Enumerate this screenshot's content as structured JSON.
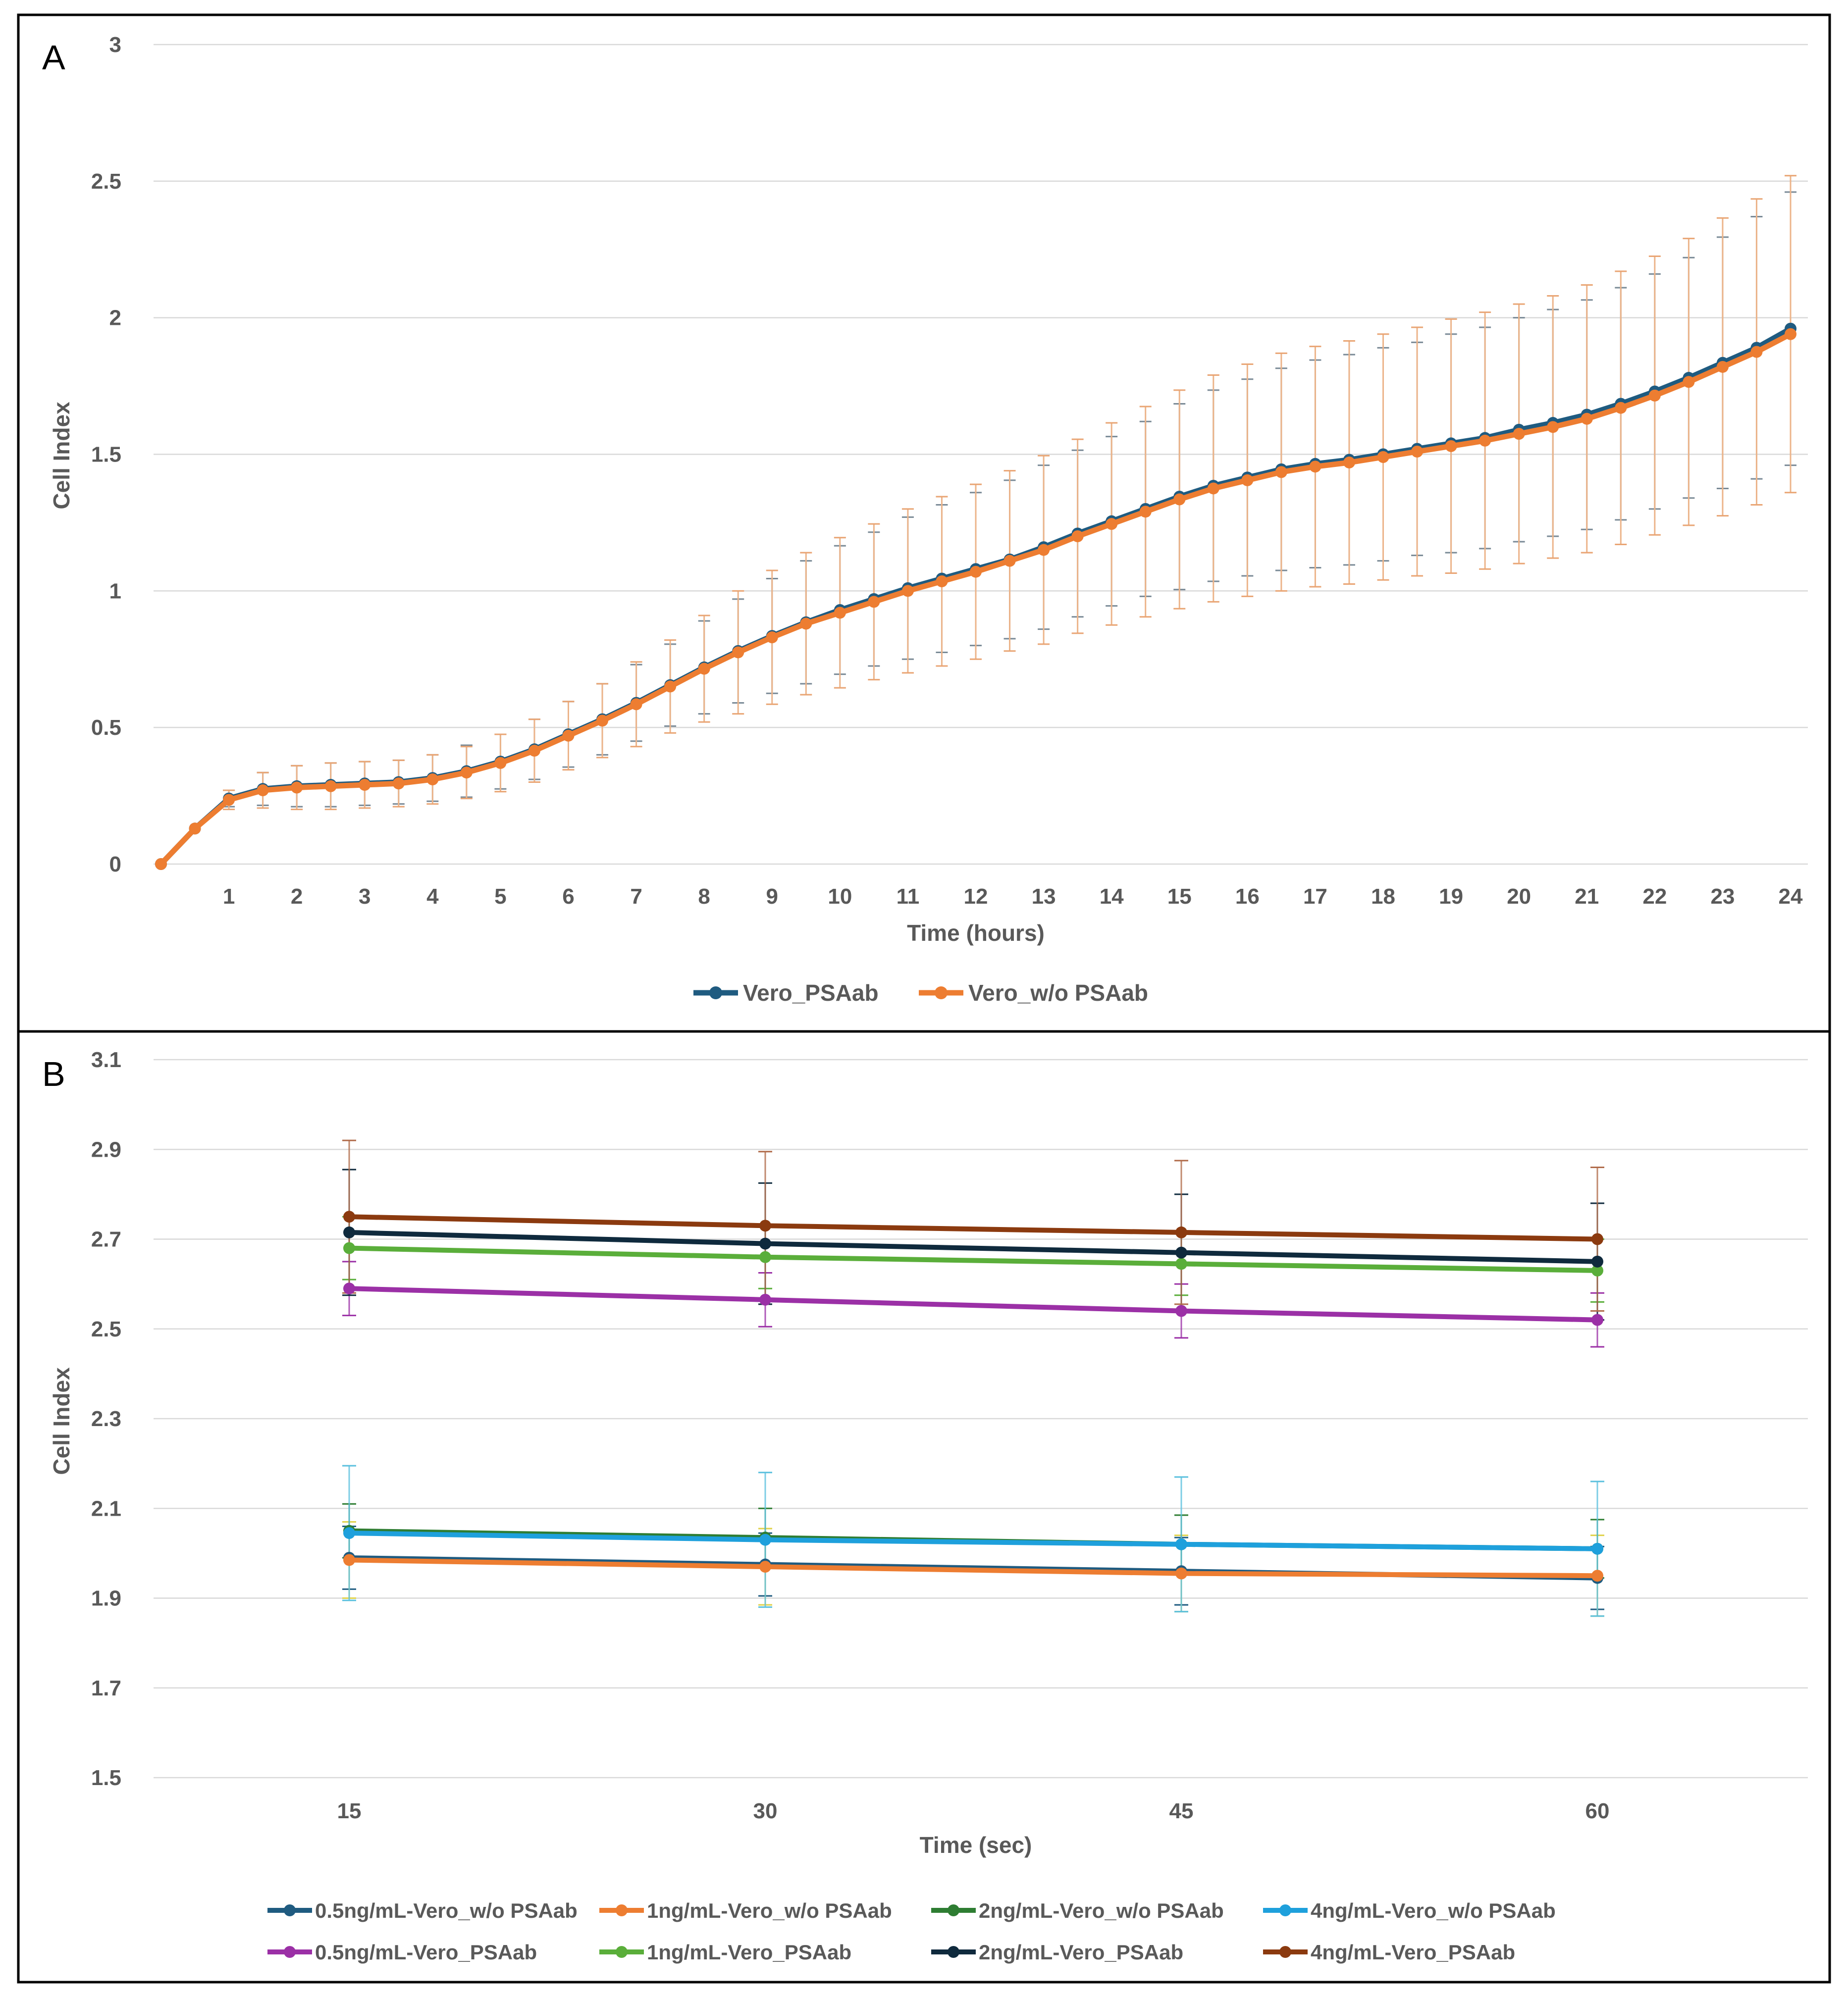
{
  "panels": {
    "a": {
      "letter": "A"
    },
    "b": {
      "letter": "B"
    }
  },
  "chart_data": [
    {
      "type": "line",
      "panel": "A",
      "title": "",
      "xlabel": "Time (hours)",
      "ylabel": "Cell Index",
      "xlim": [
        0,
        24
      ],
      "ylim": [
        0,
        3
      ],
      "x_tick_labels": [
        "1",
        "2",
        "3",
        "4",
        "5",
        "6",
        "7",
        "8",
        "9",
        "10",
        "11",
        "12",
        "13",
        "14",
        "15",
        "16",
        "17",
        "18",
        "19",
        "20",
        "21",
        "22",
        "23",
        "24"
      ],
      "y_tick_labels": [
        "0",
        "0.5",
        "1",
        "1.5",
        "2",
        "2.5",
        "3"
      ],
      "grid": true,
      "legend_position": "bottom",
      "x": [
        0,
        0.5,
        1,
        1.5,
        2,
        2.5,
        3,
        3.5,
        4,
        4.5,
        5,
        5.5,
        6,
        6.5,
        7,
        7.5,
        8,
        8.5,
        9,
        9.5,
        10,
        10.5,
        11,
        11.5,
        12,
        12.5,
        13,
        13.5,
        14,
        14.5,
        15,
        15.5,
        16,
        16.5,
        17,
        17.5,
        18,
        18.5,
        19,
        19.5,
        20,
        20.5,
        21,
        21.5,
        22,
        22.5,
        23,
        23.5,
        24
      ],
      "series": [
        {
          "name": "Vero_PSAab",
          "color": "#1f5b80",
          "values": [
            0,
            0.13,
            0.24,
            0.275,
            0.285,
            0.29,
            0.295,
            0.3,
            0.315,
            0.34,
            0.375,
            0.42,
            0.475,
            0.53,
            0.59,
            0.655,
            0.72,
            0.78,
            0.835,
            0.885,
            0.93,
            0.97,
            1.01,
            1.045,
            1.08,
            1.115,
            1.16,
            1.21,
            1.255,
            1.3,
            1.345,
            1.385,
            1.415,
            1.445,
            1.465,
            1.48,
            1.5,
            1.52,
            1.54,
            1.56,
            1.59,
            1.615,
            1.645,
            1.685,
            1.73,
            1.78,
            1.835,
            1.89,
            1.96
          ],
          "errors": [
            0,
            0,
            0.03,
            0.06,
            0.075,
            0.08,
            0.08,
            0.08,
            0.085,
            0.095,
            0.1,
            0.11,
            0.12,
            0.13,
            0.14,
            0.15,
            0.17,
            0.19,
            0.21,
            0.225,
            0.235,
            0.245,
            0.26,
            0.27,
            0.28,
            0.29,
            0.3,
            0.305,
            0.31,
            0.32,
            0.34,
            0.35,
            0.36,
            0.37,
            0.38,
            0.385,
            0.39,
            0.39,
            0.4,
            0.405,
            0.41,
            0.415,
            0.42,
            0.425,
            0.43,
            0.44,
            0.46,
            0.48,
            0.5
          ]
        },
        {
          "name": "Vero_w/o PSAab",
          "color": "#ed7d31",
          "values": [
            0,
            0.13,
            0.235,
            0.27,
            0.28,
            0.285,
            0.29,
            0.295,
            0.31,
            0.335,
            0.37,
            0.415,
            0.47,
            0.525,
            0.585,
            0.65,
            0.715,
            0.775,
            0.83,
            0.88,
            0.92,
            0.96,
            1.0,
            1.035,
            1.07,
            1.11,
            1.15,
            1.2,
            1.245,
            1.29,
            1.335,
            1.375,
            1.405,
            1.435,
            1.455,
            1.47,
            1.49,
            1.51,
            1.53,
            1.55,
            1.575,
            1.6,
            1.63,
            1.67,
            1.715,
            1.765,
            1.82,
            1.875,
            1.94
          ],
          "errors": [
            0,
            0,
            0.035,
            0.065,
            0.08,
            0.085,
            0.085,
            0.085,
            0.09,
            0.095,
            0.105,
            0.115,
            0.125,
            0.135,
            0.155,
            0.17,
            0.195,
            0.225,
            0.245,
            0.26,
            0.275,
            0.285,
            0.3,
            0.31,
            0.32,
            0.33,
            0.345,
            0.355,
            0.37,
            0.385,
            0.4,
            0.415,
            0.425,
            0.435,
            0.44,
            0.445,
            0.45,
            0.455,
            0.465,
            0.47,
            0.475,
            0.48,
            0.49,
            0.5,
            0.51,
            0.525,
            0.545,
            0.56,
            0.58
          ]
        }
      ]
    },
    {
      "type": "line",
      "panel": "B",
      "title": "",
      "xlabel": "Time (sec)",
      "ylabel": "Cell Index",
      "categories": [
        "15",
        "30",
        "45",
        "60"
      ],
      "ylim": [
        1.5,
        3.1
      ],
      "y_tick_labels": [
        "1.5",
        "1.7",
        "1.9",
        "2.1",
        "2.3",
        "2.5",
        "2.7",
        "2.9",
        "3.1"
      ],
      "grid": true,
      "legend_position": "bottom",
      "series": [
        {
          "name": "0.5ng/mL-Vero_w/o PSAab",
          "color": "#1f5b80",
          "values": [
            1.99,
            1.975,
            1.96,
            1.945
          ],
          "errors": [
            0.07,
            0.07,
            0.075,
            0.07
          ]
        },
        {
          "name": "1ng/mL-Vero_w/o PSAab",
          "color": "#ed7d31",
          "values": [
            1.985,
            1.97,
            1.955,
            1.95
          ],
          "errors": [
            0.085,
            0.085,
            0.085,
            0.09
          ]
        },
        {
          "name": "2ng/mL-Vero_w/o PSAab",
          "color": "#2e7d32",
          "values": [
            2.05,
            2.035,
            2.02,
            2.01
          ],
          "errors": [
            0.06,
            0.065,
            0.065,
            0.065
          ]
        },
        {
          "name": "4ng/mL-Vero_w/o PSAab",
          "color": "#1ea0dc",
          "values": [
            2.045,
            2.03,
            2.02,
            2.01
          ],
          "errors": [
            0.15,
            0.15,
            0.15,
            0.15
          ]
        },
        {
          "name": "0.5ng/mL-Vero_PSAab",
          "color": "#9b30a6",
          "values": [
            2.59,
            2.565,
            2.54,
            2.52
          ],
          "errors": [
            0.06,
            0.06,
            0.06,
            0.06
          ]
        },
        {
          "name": "1ng/mL-Vero_PSAab",
          "color": "#5aae3a",
          "values": [
            2.68,
            2.66,
            2.645,
            2.63
          ],
          "errors": [
            0.07,
            0.07,
            0.07,
            0.07
          ]
        },
        {
          "name": "2ng/mL-Vero_PSAab",
          "color": "#0f2a3d",
          "values": [
            2.715,
            2.69,
            2.67,
            2.65
          ],
          "errors": [
            0.14,
            0.135,
            0.13,
            0.13
          ]
        },
        {
          "name": "4ng/mL-Vero_PSAab",
          "color": "#8b3a0f",
          "values": [
            2.75,
            2.73,
            2.715,
            2.7
          ],
          "errors": [
            0.17,
            0.165,
            0.16,
            0.16
          ]
        }
      ],
      "extra_error_colors": [
        "#e0d24a",
        "#5bc0de",
        "#b06b4a"
      ]
    }
  ]
}
